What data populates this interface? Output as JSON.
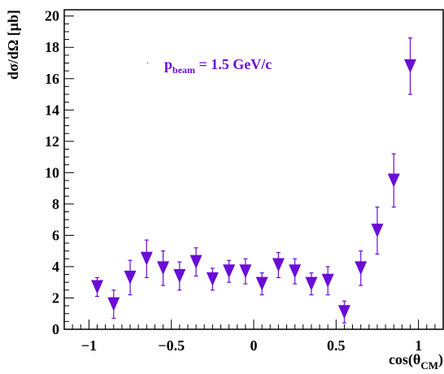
{
  "chart_data": {
    "type": "scatter",
    "marker": "inverted-triangle",
    "marker_color": "#6a0dd6",
    "xlim": [
      -1.15,
      1.15
    ],
    "ylim": [
      0,
      20.4
    ],
    "xticks": [
      -1,
      -0.5,
      0,
      0.5,
      1
    ],
    "xtick_labels": [
      "−1",
      "−0.5",
      "0",
      "0.5",
      "1"
    ],
    "yticks": [
      0,
      2,
      4,
      6,
      8,
      10,
      12,
      14,
      16,
      18,
      20
    ],
    "ytick_labels": [
      "0",
      "2",
      "4",
      "6",
      "8",
      "10",
      "12",
      "14",
      "16",
      "18",
      "20"
    ],
    "ylabel": "dσ/dΩ [μb]",
    "xlabel": {
      "main": "cos(θ",
      "sub": "CM",
      "close": ")"
    },
    "legend": {
      "main": "p",
      "sub": "beam",
      "rest": " = 1.5 GeV/c",
      "position": "top-left"
    },
    "series": [
      {
        "x": [
          -0.95,
          -0.85,
          -0.75,
          -0.65,
          -0.55,
          -0.45,
          -0.35,
          -0.25,
          -0.15,
          -0.05,
          0.05,
          0.15,
          0.25,
          0.35,
          0.45,
          0.55,
          0.65,
          0.75,
          0.85,
          0.95
        ],
        "y": [
          2.7,
          1.6,
          3.3,
          4.5,
          3.9,
          3.4,
          4.3,
          3.2,
          3.7,
          3.7,
          2.9,
          4.1,
          3.7,
          2.9,
          3.1,
          1.1,
          3.9,
          6.3,
          9.5,
          16.8
        ],
        "y_err": [
          0.6,
          0.9,
          1.1,
          1.2,
          1.1,
          0.9,
          0.9,
          0.7,
          0.7,
          0.8,
          0.7,
          0.8,
          0.8,
          0.7,
          0.9,
          0.7,
          1.1,
          1.5,
          1.7,
          1.8
        ]
      }
    ]
  }
}
